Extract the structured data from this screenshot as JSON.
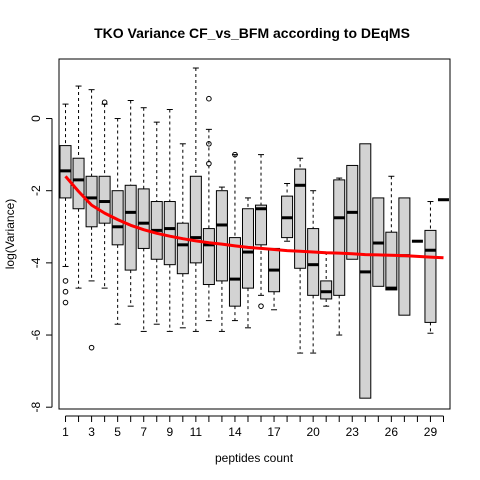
{
  "chart_data": {
    "type": "boxplot",
    "title": "TKO Variance CF_vs_BFM according to DEqMS",
    "xlabel": "peptides count",
    "ylabel": "log(Variance)",
    "xlim": [
      0.5,
      30.5
    ],
    "ylim": [
      -8.05,
      1.65
    ],
    "x_tick_labels": [
      "1",
      "3",
      "5",
      "7",
      "9",
      "11",
      "14",
      "17",
      "20",
      "23",
      "26",
      "29"
    ],
    "y_tick_labels": [
      "-8",
      "-6",
      "-4",
      "-2",
      "0"
    ],
    "grid": false,
    "trend_line": {
      "color": "#ff0000",
      "x": [
        1,
        2,
        3,
        4,
        5,
        6,
        7,
        8,
        9,
        10,
        11,
        12,
        13,
        14,
        15,
        16,
        17,
        18,
        19,
        20,
        21,
        22,
        23,
        24,
        25,
        26,
        27,
        28,
        29,
        30
      ],
      "y": [
        -1.6,
        -2.02,
        -2.4,
        -2.62,
        -2.8,
        -2.96,
        -3.08,
        -3.18,
        -3.26,
        -3.33,
        -3.39,
        -3.44,
        -3.48,
        -3.53,
        -3.57,
        -3.6,
        -3.63,
        -3.66,
        -3.68,
        -3.7,
        -3.72,
        -3.73,
        -3.75,
        -3.77,
        -3.78,
        -3.79,
        -3.8,
        -3.82,
        -3.84,
        -3.86
      ]
    },
    "boxes": [
      {
        "x": 1,
        "whisker_low": -4.1,
        "q1": -2.2,
        "median": -1.45,
        "q3": -0.75,
        "whisker_high": 0.4,
        "outliers": [
          -4.5,
          -4.8,
          -5.1
        ]
      },
      {
        "x": 2,
        "whisker_low": -4.7,
        "q1": -2.5,
        "median": -1.7,
        "q3": -1.1,
        "whisker_high": 0.9,
        "outliers": []
      },
      {
        "x": 3,
        "whisker_low": -4.5,
        "q1": -3.0,
        "median": -2.2,
        "q3": -1.6,
        "whisker_high": 0.8,
        "outliers": [
          -6.35
        ]
      },
      {
        "x": 4,
        "whisker_low": -4.7,
        "q1": -2.9,
        "median": -2.3,
        "q3": -1.6,
        "whisker_high": 0.4,
        "outliers": [
          0.45
        ]
      },
      {
        "x": 5,
        "whisker_low": -5.7,
        "q1": -3.5,
        "median": -3.0,
        "q3": -2.0,
        "whisker_high": 0.0,
        "outliers": []
      },
      {
        "x": 6,
        "whisker_low": -5.2,
        "q1": -4.2,
        "median": -2.6,
        "q3": -1.85,
        "whisker_high": 0.5,
        "outliers": []
      },
      {
        "x": 7,
        "whisker_low": -5.9,
        "q1": -3.6,
        "median": -2.9,
        "q3": -1.95,
        "whisker_high": 0.3,
        "outliers": []
      },
      {
        "x": 8,
        "whisker_low": -5.7,
        "q1": -3.9,
        "median": -3.1,
        "q3": -2.3,
        "whisker_high": -0.1,
        "outliers": []
      },
      {
        "x": 9,
        "whisker_low": -5.9,
        "q1": -4.05,
        "median": -3.05,
        "q3": -2.3,
        "whisker_high": 0.25,
        "outliers": []
      },
      {
        "x": 10,
        "whisker_low": -5.8,
        "q1": -4.3,
        "median": -3.5,
        "q3": -2.9,
        "whisker_high": -0.7,
        "outliers": []
      },
      {
        "x": 11,
        "whisker_low": -5.9,
        "q1": -4.0,
        "median": -3.3,
        "q3": -1.6,
        "whisker_high": 1.4,
        "outliers": []
      },
      {
        "x": 12,
        "whisker_low": -5.6,
        "q1": -4.6,
        "median": -3.5,
        "q3": -3.05,
        "whisker_high": -0.3,
        "outliers": [
          0.55,
          -0.7,
          -1.25
        ]
      },
      {
        "x": 13,
        "whisker_low": -5.9,
        "q1": -4.5,
        "median": -2.95,
        "q3": -2.0,
        "whisker_high": -1.9,
        "outliers": []
      },
      {
        "x": 14,
        "whisker_low": -5.6,
        "q1": -5.2,
        "median": -4.45,
        "q3": -3.3,
        "whisker_high": -1.0,
        "outliers": [
          -1.0
        ]
      },
      {
        "x": 15,
        "whisker_low": -5.8,
        "q1": -4.7,
        "median": -3.7,
        "q3": -2.5,
        "whisker_high": -2.2,
        "outliers": []
      },
      {
        "x": 16,
        "whisker_low": -4.9,
        "q1": -3.5,
        "median": -2.5,
        "q3": -2.4,
        "whisker_high": -1.0,
        "outliers": [
          -5.2
        ]
      },
      {
        "x": 17,
        "whisker_low": -5.3,
        "q1": -4.8,
        "median": -4.2,
        "q3": -3.6,
        "whisker_high": -3.6,
        "outliers": []
      },
      {
        "x": 18,
        "whisker_low": -3.4,
        "q1": -3.3,
        "median": -2.75,
        "q3": -2.15,
        "whisker_high": -1.8,
        "outliers": []
      },
      {
        "x": 19,
        "whisker_low": -6.5,
        "q1": -4.15,
        "median": -1.85,
        "q3": -1.4,
        "whisker_high": -1.1,
        "outliers": []
      },
      {
        "x": 20,
        "whisker_low": -6.5,
        "q1": -4.9,
        "median": -4.05,
        "q3": -3.05,
        "whisker_high": -2.0,
        "outliers": []
      },
      {
        "x": 21,
        "whisker_low": -5.2,
        "q1": -5.0,
        "median": -4.8,
        "q3": -4.5,
        "whisker_high": -3.7,
        "outliers": []
      },
      {
        "x": 22,
        "whisker_low": -6.0,
        "q1": -4.9,
        "median": -2.75,
        "q3": -1.7,
        "whisker_high": -1.65,
        "outliers": []
      },
      {
        "x": 23,
        "whisker_low": -3.9,
        "q1": -3.9,
        "median": -2.6,
        "q3": -1.3,
        "whisker_high": -1.3,
        "outliers": []
      },
      {
        "x": 24,
        "whisker_low": -7.75,
        "q1": -7.75,
        "median": -4.25,
        "q3": -0.7,
        "whisker_high": -0.7,
        "outliers": []
      },
      {
        "x": 25,
        "whisker_low": -4.65,
        "q1": -4.65,
        "median": -3.45,
        "q3": -2.2,
        "whisker_high": -2.2,
        "outliers": []
      },
      {
        "x": 26,
        "whisker_low": -4.75,
        "q1": -4.75,
        "median": -4.7,
        "q3": -3.15,
        "whisker_high": -1.6,
        "outliers": []
      },
      {
        "x": 27,
        "whisker_low": -5.45,
        "q1": -5.45,
        "median": -3.8,
        "q3": -2.2,
        "whisker_high": -2.2,
        "outliers": []
      },
      {
        "x": 28,
        "whisker_low": -3.4,
        "q1": -3.4,
        "median": -3.4,
        "q3": -3.4,
        "whisker_high": -3.4,
        "outliers": []
      },
      {
        "x": 29,
        "whisker_low": -5.95,
        "q1": -5.65,
        "median": -3.65,
        "q3": -3.1,
        "whisker_high": -2.3,
        "outliers": []
      },
      {
        "x": 30,
        "whisker_low": -2.25,
        "q1": -2.25,
        "median": -2.25,
        "q3": -2.25,
        "whisker_high": -2.25,
        "outliers": []
      }
    ]
  }
}
